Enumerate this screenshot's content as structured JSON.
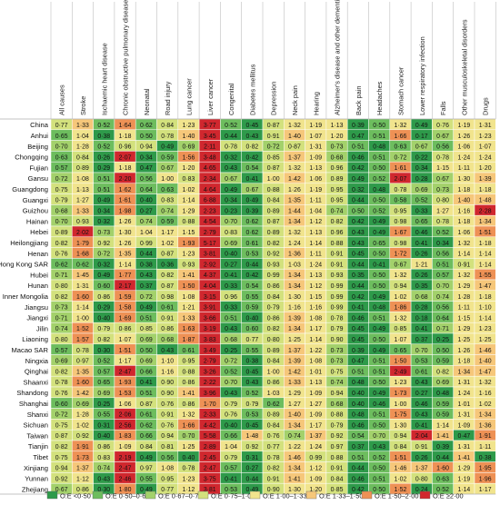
{
  "chart_data": {
    "type": "heatmap",
    "title": "",
    "columns": [
      "All causes",
      "Stroke",
      "Ischaemic heart disease",
      "Chronic obstructive pulmonary disease",
      "Neonatal",
      "Road injury",
      "Lung cancer",
      "Liver cancer",
      "Congenital",
      "Diabetes mellitus",
      "Depression",
      "Neck pain",
      "Hearing",
      "Alzheimer's disease and other dementias",
      "Back pain",
      "Headaches",
      "Stomach cancer",
      "Lower respiratory infection",
      "Falls",
      "Other musculoskeletal disorders",
      "Drugs"
    ],
    "rows": [
      "China",
      "Anhui",
      "Beijing",
      "Chongqing",
      "Fujian",
      "Gansu",
      "Guangdong",
      "Guangxi",
      "Guizhou",
      "Hainan",
      "Hebei",
      "Heilongjiang",
      "Henan",
      "Hong Kong SAR",
      "Hubei",
      "Hunan",
      "Inner Mongolia",
      "Jiangsu",
      "Jiangxi",
      "Jilin",
      "Liaoning",
      "Macao SAR",
      "Ningxia",
      "Qinghai",
      "Shaanxi",
      "Shandong",
      "Shanghai",
      "Shanxi",
      "Sichuan",
      "Taiwan",
      "Tianjin",
      "Tibet",
      "Xinjiang",
      "Yunnan",
      "Zhejiang"
    ],
    "values": [
      [
        "0.77",
        "1.33",
        "0.52",
        "1.64",
        "0.62",
        "0.84",
        "1.23",
        "3.77",
        "0.52",
        "0.45",
        "0.87",
        "1.32",
        "1.19",
        "1.13",
        "0.39",
        "0.50",
        "1.32",
        "0.49",
        "0.76",
        "1.19",
        "1.31"
      ],
      [
        "0.65",
        "1.04",
        "0.38",
        "1.18",
        "0.50",
        "0.78",
        "1.40",
        "3.45",
        "0.44",
        "0.43",
        "0.91",
        "1.40",
        "1.07",
        "1.20",
        "0.47",
        "0.51",
        "1.66",
        "0.17",
        "0.67",
        "1.26",
        "1.23"
      ],
      [
        "0.70",
        "1.28",
        "0.52",
        "0.96",
        "0.94",
        "0.49",
        "0.69",
        "2.11",
        "0.78",
        "0.82",
        "0.72",
        "0.87",
        "1.31",
        "0.73",
        "0.51",
        "0.48",
        "0.63",
        "0.67",
        "0.56",
        "1.06",
        "1.07"
      ],
      [
        "0.63",
        "0.84",
        "0.26",
        "2.07",
        "0.34",
        "0.59",
        "1.56",
        "3.48",
        "0.32",
        "0.42",
        "0.85",
        "1.37",
        "1.09",
        "0.68",
        "0.46",
        "0.51",
        "0.72",
        "0.22",
        "0.78",
        "1.24",
        "1.24"
      ],
      [
        "0.57",
        "0.89",
        "0.29",
        "1.18",
        "0.47",
        "0.67",
        "1.20",
        "4.65",
        "0.43",
        "0.54",
        "0.87",
        "1.32",
        "1.13",
        "0.96",
        "0.42",
        "0.50",
        "1.61",
        "0.34",
        "1.15",
        "1.11",
        "1.20"
      ],
      [
        "0.72",
        "1.08",
        "0.51",
        "2.20",
        "0.56",
        "1.00",
        "0.83",
        "2.34",
        "0.67",
        "0.41",
        "1.00",
        "1.42",
        "1.06",
        "0.89",
        "0.49",
        "0.52",
        "2.07",
        "0.28",
        "0.67",
        "1.30",
        "1.39"
      ],
      [
        "0.75",
        "1.13",
        "0.51",
        "1.62",
        "0.64",
        "0.63",
        "1.02",
        "4.64",
        "0.49",
        "0.67",
        "0.88",
        "1.26",
        "1.19",
        "0.95",
        "0.32",
        "0.48",
        "0.78",
        "0.69",
        "0.73",
        "1.18",
        "1.18"
      ],
      [
        "0.79",
        "1.27",
        "0.49",
        "1.61",
        "0.40",
        "0.83",
        "1.14",
        "6.88",
        "0.34",
        "0.49",
        "0.84",
        "1.35",
        "1.11",
        "0.95",
        "0.44",
        "0.50",
        "0.58",
        "0.52",
        "0.80",
        "1.40",
        "1.48"
      ],
      [
        "0.68",
        "1.33",
        "0.34",
        "1.98",
        "0.27",
        "0.74",
        "1.29",
        "2.23",
        "0.23",
        "0.39",
        "0.89",
        "1.44",
        "1.04",
        "0.74",
        "0.50",
        "0.52",
        "0.95",
        "0.33",
        "1.27",
        "1.16",
        "2.28"
      ],
      [
        "0.70",
        "0.93",
        "0.32",
        "1.26",
        "0.74",
        "0.59",
        "0.88",
        "4.54",
        "0.70",
        "0.62",
        "0.87",
        "1.34",
        "1.12",
        "0.82",
        "0.42",
        "0.49",
        "0.98",
        "0.65",
        "0.78",
        "1.18",
        "1.34"
      ],
      [
        "0.89",
        "2.02",
        "0.73",
        "1.30",
        "1.04",
        "1.17",
        "1.15",
        "2.79",
        "0.83",
        "0.62",
        "0.89",
        "1.32",
        "1.13",
        "0.96",
        "0.43",
        "0.49",
        "1.67",
        "0.46",
        "0.52",
        "1.06",
        "1.51"
      ],
      [
        "0.82",
        "1.79",
        "0.92",
        "1.26",
        "0.99",
        "1.02",
        "1.93",
        "5.17",
        "0.69",
        "0.61",
        "0.82",
        "1.24",
        "1.14",
        "0.88",
        "0.43",
        "0.65",
        "0.98",
        "0.41",
        "0.34",
        "1.32",
        "1.18"
      ],
      [
        "0.76",
        "1.68",
        "0.72",
        "1.35",
        "0.44",
        "0.87",
        "1.23",
        "3.81",
        "0.40",
        "0.53",
        "0.92",
        "1.36",
        "1.11",
        "0.91",
        "0.45",
        "0.50",
        "1.72",
        "0.26",
        "0.56",
        "1.14",
        "1.14"
      ],
      [
        "0.62",
        "0.62",
        "0.32",
        "1.14",
        "0.38",
        "0.36",
        "0.93",
        "2.92",
        "0.27",
        "0.44",
        "0.93",
        "1.03",
        "1.24",
        "0.91",
        "0.44",
        "0.41",
        "0.67",
        "1.21",
        "0.51",
        "0.91",
        "1.14"
      ],
      [
        "0.71",
        "1.45",
        "0.49",
        "1.77",
        "0.43",
        "0.82",
        "1.41",
        "4.37",
        "0.41",
        "0.42",
        "0.99",
        "1.34",
        "1.13",
        "0.93",
        "0.35",
        "0.50",
        "1.32",
        "0.26",
        "0.57",
        "1.32",
        "1.55"
      ],
      [
        "0.80",
        "1.31",
        "0.60",
        "2.17",
        "0.37",
        "0.87",
        "1.50",
        "4.04",
        "0.33",
        "0.54",
        "0.86",
        "1.34",
        "1.12",
        "0.99",
        "0.44",
        "0.50",
        "0.94",
        "0.35",
        "0.70",
        "1.29",
        "1.47"
      ],
      [
        "0.82",
        "1.60",
        "0.86",
        "1.59",
        "0.72",
        "0.98",
        "1.08",
        "3.15",
        "0.96",
        "0.55",
        "0.84",
        "1.30",
        "1.15",
        "0.99",
        "0.42",
        "0.49",
        "1.02",
        "0.68",
        "0.74",
        "1.28",
        "1.18"
      ],
      [
        "0.73",
        "1.14",
        "0.29",
        "1.58",
        "0.49",
        "0.61",
        "1.21",
        "3.91",
        "0.33",
        "0.59",
        "0.79",
        "1.16",
        "1.16",
        "0.99",
        "0.41",
        "0.48",
        "1.86",
        "0.28",
        "0.56",
        "1.11",
        "1.10"
      ],
      [
        "0.71",
        "1.00",
        "0.40",
        "1.69",
        "0.51",
        "0.91",
        "1.33",
        "3.66",
        "0.51",
        "0.40",
        "0.86",
        "1.39",
        "1.08",
        "0.78",
        "0.46",
        "0.51",
        "1.32",
        "0.18",
        "0.64",
        "1.15",
        "1.14"
      ],
      [
        "0.74",
        "1.52",
        "0.79",
        "0.86",
        "0.85",
        "0.86",
        "1.63",
        "3.19",
        "0.43",
        "0.60",
        "0.82",
        "1.34",
        "1.17",
        "0.79",
        "0.45",
        "0.49",
        "0.85",
        "0.41",
        "0.71",
        "1.29",
        "1.23"
      ],
      [
        "0.80",
        "1.57",
        "0.82",
        "1.07",
        "0.69",
        "0.68",
        "1.87",
        "3.83",
        "0.68",
        "0.77",
        "0.80",
        "1.25",
        "1.14",
        "0.90",
        "0.45",
        "0.50",
        "1.07",
        "0.37",
        "0.25",
        "1.25",
        "1.25"
      ],
      [
        "0.57",
        "0.78",
        "0.30",
        "1.51",
        "0.50",
        "0.43",
        "0.61",
        "3.49",
        "0.25",
        "0.55",
        "0.89",
        "1.37",
        "1.22",
        "0.73",
        "0.39",
        "0.49",
        "0.65",
        "0.70",
        "0.50",
        "1.26",
        "1.46"
      ],
      [
        "0.69",
        "0.97",
        "0.52",
        "1.17",
        "0.69",
        "1.10",
        "0.95",
        "2.79",
        "0.72",
        "0.38",
        "0.84",
        "1.39",
        "1.08",
        "0.73",
        "0.47",
        "0.51",
        "1.50",
        "0.53",
        "0.59",
        "1.18",
        "1.40"
      ],
      [
        "0.82",
        "1.35",
        "0.57",
        "2.47",
        "0.66",
        "1.16",
        "0.88",
        "3.26",
        "0.52",
        "0.45",
        "1.00",
        "1.42",
        "1.01",
        "0.75",
        "0.51",
        "0.51",
        "2.49",
        "0.61",
        "0.82",
        "1.34",
        "1.47"
      ],
      [
        "0.78",
        "1.60",
        "0.65",
        "1.93",
        "0.41",
        "0.90",
        "0.86",
        "2.22",
        "0.70",
        "0.43",
        "0.86",
        "1.33",
        "1.13",
        "0.74",
        "0.48",
        "0.50",
        "1.23",
        "0.43",
        "0.69",
        "1.31",
        "1.32"
      ],
      [
        "0.76",
        "1.42",
        "0.69",
        "1.53",
        "0.51",
        "0.90",
        "1.41",
        "3.96",
        "0.43",
        "0.52",
        "1.03",
        "1.29",
        "1.09",
        "0.94",
        "0.40",
        "0.49",
        "1.73",
        "0.27",
        "0.48",
        "1.24",
        "1.16"
      ],
      [
        "0.60",
        "0.69",
        "0.25",
        "1.06",
        "0.87",
        "0.76",
        "0.86",
        "1.70",
        "0.79",
        "0.79",
        "0.62",
        "1.27",
        "1.27",
        "0.68",
        "0.40",
        "0.46",
        "1.00",
        "0.46",
        "0.59",
        "1.01",
        "1.02"
      ],
      [
        "0.72",
        "1.28",
        "0.55",
        "2.06",
        "0.61",
        "0.91",
        "1.32",
        "2.33",
        "0.76",
        "0.53",
        "0.89",
        "1.40",
        "1.09",
        "0.88",
        "0.48",
        "0.51",
        "1.75",
        "0.43",
        "0.59",
        "1.31",
        "1.34"
      ],
      [
        "0.75",
        "1.02",
        "0.31",
        "2.56",
        "0.62",
        "0.76",
        "1.66",
        "4.42",
        "0.40",
        "0.45",
        "0.84",
        "1.34",
        "1.17",
        "0.79",
        "0.46",
        "0.50",
        "1.30",
        "0.41",
        "1.14",
        "1.09",
        "1.36"
      ],
      [
        "0.87",
        "0.92",
        "0.40",
        "1.83",
        "0.66",
        "0.94",
        "0.70",
        "5.58",
        "0.66",
        "1.48",
        "0.76",
        "0.74",
        "1.37",
        "0.92",
        "0.54",
        "0.70",
        "0.94",
        "2.04",
        "1.41",
        "0.47",
        "1.91"
      ],
      [
        "0.82",
        "1.91",
        "0.86",
        "1.09",
        "0.84",
        "0.81",
        "1.25",
        "2.89",
        "1.04",
        "0.92",
        "0.77",
        "1.22",
        "1.24",
        "0.97",
        "0.37",
        "0.43",
        "0.84",
        "0.91",
        "0.39",
        "1.31",
        "1.11"
      ],
      [
        "0.75",
        "1.73",
        "0.83",
        "2.19",
        "0.49",
        "0.56",
        "0.40",
        "2.45",
        "0.79",
        "0.31",
        "0.78",
        "1.46",
        "0.99",
        "0.88",
        "0.51",
        "0.52",
        "1.51",
        "0.26",
        "0.44",
        "1.41",
        "0.38"
      ],
      [
        "0.94",
        "1.37",
        "0.74",
        "2.47",
        "0.97",
        "1.08",
        "0.78",
        "2.47",
        "0.57",
        "0.27",
        "0.82",
        "1.34",
        "1.12",
        "0.91",
        "0.44",
        "0.50",
        "1.46",
        "1.37",
        "1.60",
        "1.29",
        "1.95"
      ],
      [
        "0.92",
        "1.12",
        "0.43",
        "2.46",
        "0.55",
        "0.95",
        "1.23",
        "3.75",
        "0.41",
        "0.44",
        "0.91",
        "1.41",
        "1.09",
        "0.84",
        "0.46",
        "0.51",
        "1.02",
        "0.80",
        "0.63",
        "1.19",
        "1.96"
      ],
      [
        "0.67",
        "0.86",
        "0.30",
        "1.80",
        "0.49",
        "0.77",
        "1.12",
        "3.81",
        "0.53",
        "0.49",
        "0.90",
        "1.30",
        "1.20",
        "0.85",
        "0.42",
        "0.50",
        "1.52",
        "0.24",
        "0.52",
        "1.14",
        "1.17"
      ]
    ],
    "legend": [
      {
        "label": "O:E <0·50",
        "color": "#2e9a4a"
      },
      {
        "label": "O:E 0·50–0·67",
        "color": "#6dbd5e"
      },
      {
        "label": "O:E 0·67–0·75",
        "color": "#a3d16b"
      },
      {
        "label": "O:E 0·75–1·00",
        "color": "#d3e17d"
      },
      {
        "label": "O:E 1·00–1·33",
        "color": "#f1e48d"
      },
      {
        "label": "O:E 1·33–1·50",
        "color": "#f6c77a"
      },
      {
        "label": "O:E 1·50–2·00",
        "color": "#ee9155"
      },
      {
        "label": "O:E ≥2·00",
        "color": "#d0272e"
      }
    ],
    "legend_placement": "bottom"
  }
}
